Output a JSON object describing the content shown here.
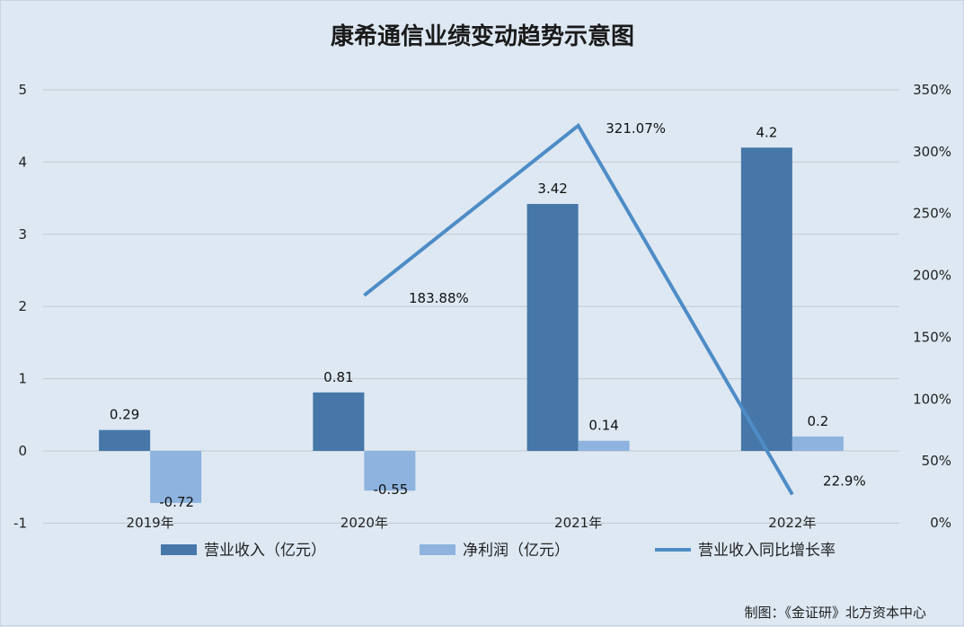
{
  "chart_data": {
    "type": "bar",
    "title": "康希通信业绩变动趋势示意图",
    "categories": [
      "2019年",
      "2020年",
      "2021年",
      "2022年"
    ],
    "y_left": {
      "ticks": [
        "-1",
        "0",
        "1",
        "2",
        "3",
        "4",
        "5"
      ],
      "ylim": [
        -1,
        5
      ]
    },
    "y_right": {
      "ticks": [
        "0%",
        "50%",
        "100%",
        "150%",
        "200%",
        "250%",
        "300%",
        "350%"
      ],
      "ylim": [
        0,
        350
      ]
    },
    "series": [
      {
        "name": "营业收入（亿元）",
        "type": "bar",
        "axis": "left",
        "color": "#4677a8",
        "values": [
          0.29,
          0.81,
          3.42,
          4.2
        ],
        "labels": [
          "0.29",
          "0.81",
          "3.42",
          "4.2"
        ]
      },
      {
        "name": "净利润（亿元）",
        "type": "bar",
        "axis": "left",
        "color": "#8db3de",
        "values": [
          -0.72,
          -0.55,
          0.14,
          0.2
        ],
        "labels": [
          "-0.72",
          "-0.55",
          "0.14",
          "0.2"
        ]
      },
      {
        "name": "营业收入同比增长率",
        "type": "line",
        "axis": "right",
        "color": "#4e8cc6",
        "values": [
          null,
          183.88,
          321.07,
          22.9
        ],
        "labels": [
          "",
          "183.88%",
          "321.07%",
          "22.9%"
        ]
      }
    ],
    "grid": true,
    "legend_position": "bottom"
  },
  "footer": {
    "credit": "制图：《金证研》北方资本中心"
  }
}
